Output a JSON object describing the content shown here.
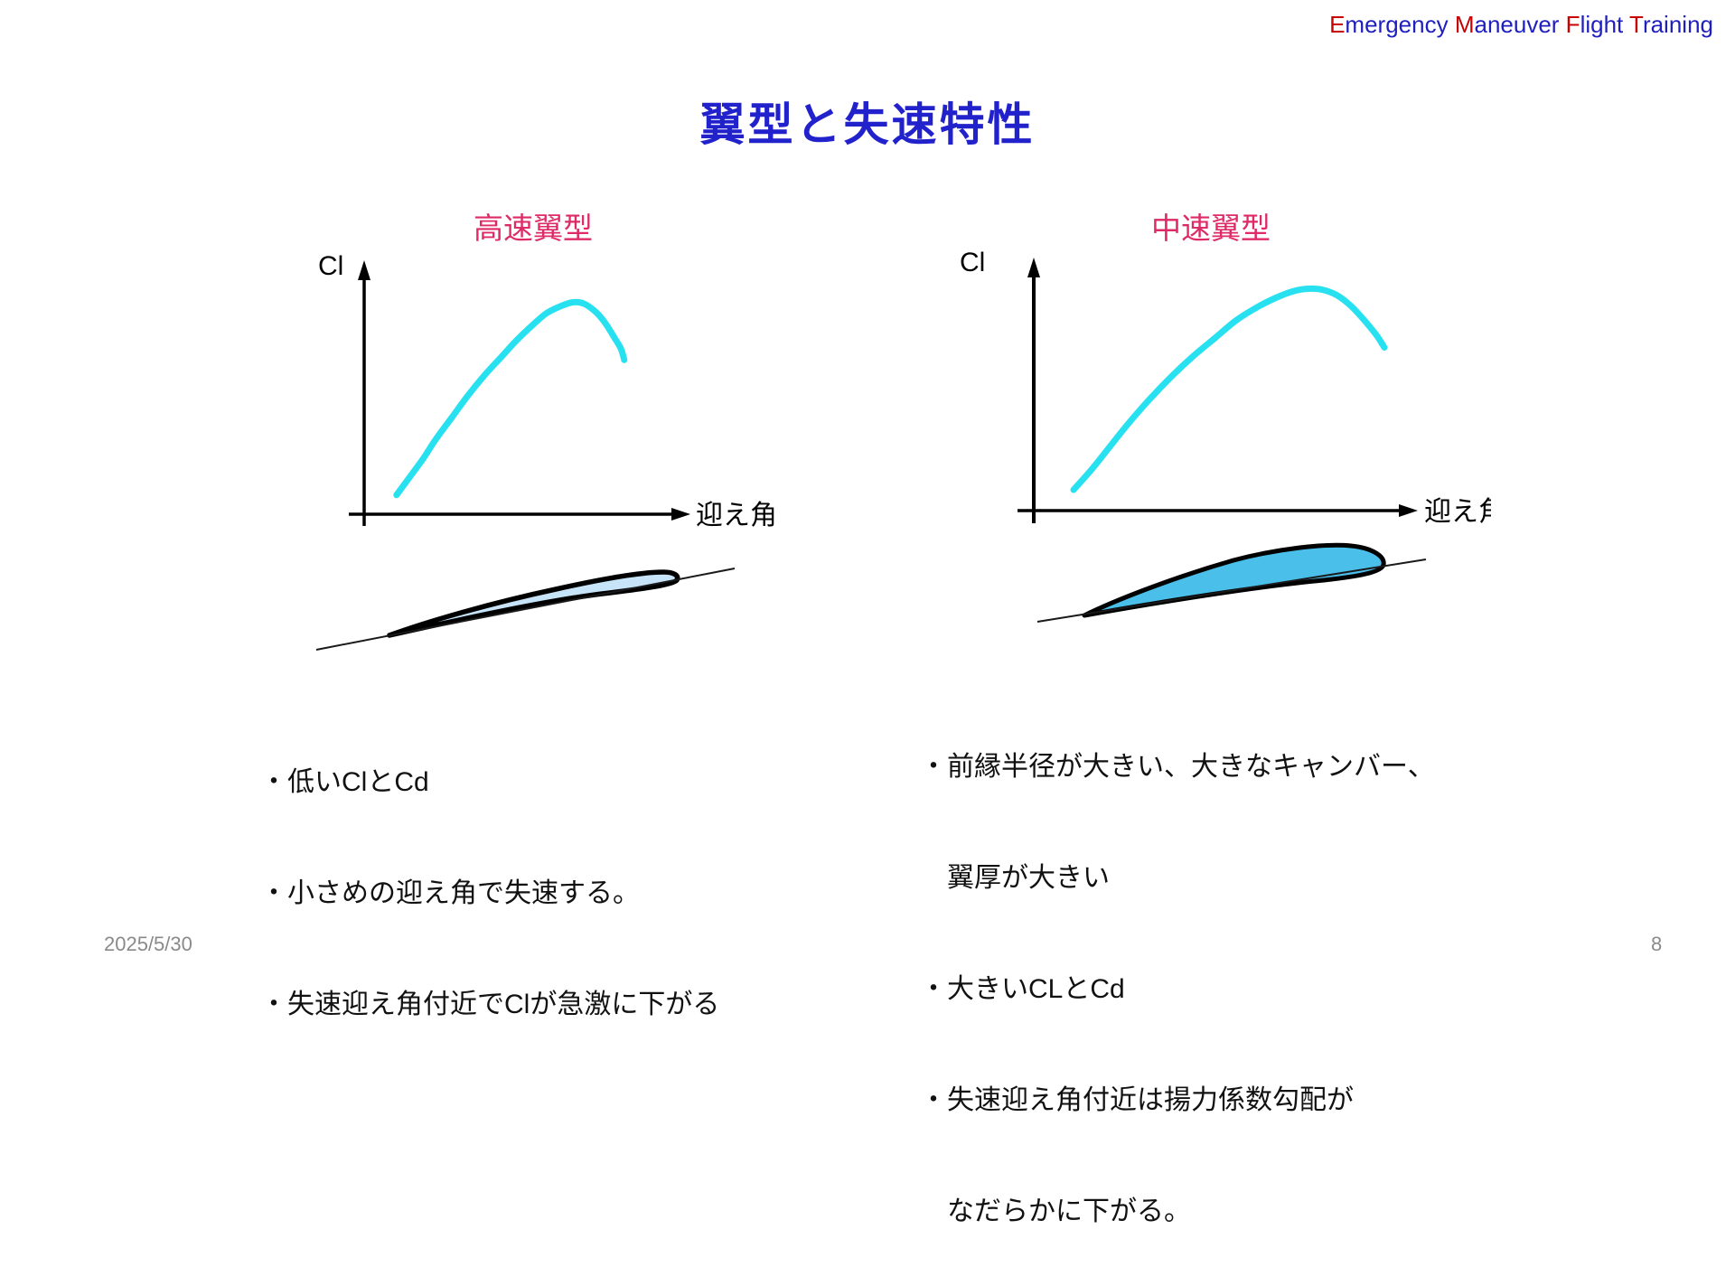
{
  "header": {
    "segments": [
      {
        "text": "E"
      },
      {
        "text": "mergency "
      },
      {
        "text": "M"
      },
      {
        "text": "aneuver "
      },
      {
        "text": "F"
      },
      {
        "text": "light "
      },
      {
        "text": "T"
      },
      {
        "text": "raining"
      }
    ]
  },
  "title": "翼型と失速特性",
  "chart_data": [
    {
      "type": "line",
      "title": "高速翼型",
      "xlabel": "迎え角",
      "ylabel": "Cl",
      "axis_ticks": "none (schematic sketch, no numeric scale)",
      "legend": "none",
      "points": [
        [
          0.08,
          0.05
        ],
        [
          0.12,
          0.13
        ],
        [
          0.16,
          0.21
        ],
        [
          0.2,
          0.3
        ],
        [
          0.25,
          0.4
        ],
        [
          0.3,
          0.5
        ],
        [
          0.35,
          0.59
        ],
        [
          0.4,
          0.67
        ],
        [
          0.45,
          0.75
        ],
        [
          0.5,
          0.82
        ],
        [
          0.54,
          0.87
        ],
        [
          0.58,
          0.9
        ],
        [
          0.62,
          0.92
        ],
        [
          0.655,
          0.915
        ],
        [
          0.69,
          0.88
        ],
        [
          0.72,
          0.83
        ],
        [
          0.75,
          0.76
        ],
        [
          0.77,
          0.71
        ],
        [
          0.78,
          0.66
        ]
      ]
    },
    {
      "type": "line",
      "title": "中速翼型",
      "xlabel": "迎え角",
      "ylabel": "Cl",
      "axis_ticks": "none (schematic sketch, no numeric scale)",
      "legend": "none",
      "points": [
        [
          0.07,
          0.06
        ],
        [
          0.12,
          0.15
        ],
        [
          0.17,
          0.25
        ],
        [
          0.22,
          0.35
        ],
        [
          0.28,
          0.46
        ],
        [
          0.34,
          0.56
        ],
        [
          0.4,
          0.65
        ],
        [
          0.46,
          0.73
        ],
        [
          0.52,
          0.81
        ],
        [
          0.58,
          0.87
        ],
        [
          0.63,
          0.91
        ],
        [
          0.68,
          0.94
        ],
        [
          0.72,
          0.95
        ],
        [
          0.76,
          0.945
        ],
        [
          0.8,
          0.92
        ],
        [
          0.84,
          0.87
        ],
        [
          0.88,
          0.8
        ],
        [
          0.91,
          0.74
        ],
        [
          0.93,
          0.69
        ]
      ]
    }
  ],
  "panels": [
    {
      "label": "高速翼型",
      "bullets": [
        "・低いClとCd",
        "・小さめの迎え角で失速する。",
        "・失速迎え角付近でClが急激に下がる"
      ]
    },
    {
      "label": "中速翼型",
      "bullets": [
        "・前縁半径が大きい、大きなキャンバー、",
        "　翼厚が大きい",
        "・大きいCLとCd",
        "・失速迎え角付近は揚力係数勾配が",
        "　なだらかに下がる。"
      ]
    }
  ],
  "footer": {
    "date": "2025/5/30",
    "page": "8"
  },
  "colors": {
    "brand_blue": "#1F1FC0",
    "accent_red": "#C80000",
    "title_blue": "#2222CC",
    "label_pink": "#DE2A66",
    "curve_cyan": "#27E1F0",
    "axis_black": "#000000",
    "airfoil_light": "#C6E3F7",
    "airfoil_medium": "#49BFEA",
    "chord_line": "#1a1a1a"
  }
}
